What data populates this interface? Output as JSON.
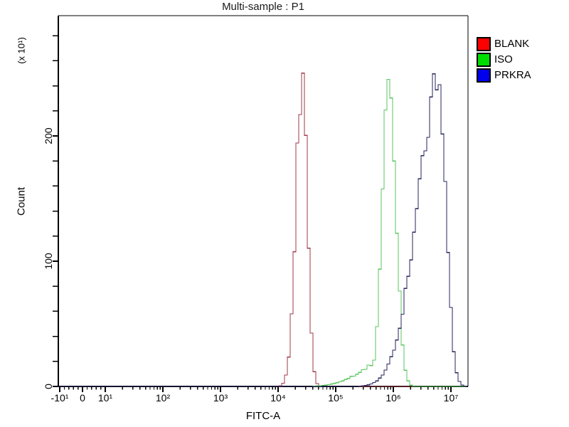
{
  "title": "Multi-sample : P1",
  "chart_data": {
    "type": "line",
    "subtype": "flow-cytometry-histogram",
    "title": "Multi-sample : P1",
    "xlabel": "FITC-A",
    "ylabel": "Count",
    "y_unit_label": "(x 10¹)",
    "x_scale": "biexponential (linear from -10 to 10, logarithmic 10¹ to 10⁷)",
    "xlim_labels": [
      "-10¹",
      "10⁷"
    ],
    "ylim": [
      0,
      290
    ],
    "y_minor_tick_step": 20,
    "grid": "off",
    "legend_position": "top-right-outside",
    "y_major_ticks": [
      {
        "value": 0,
        "label": "0"
      },
      {
        "value": 100,
        "label": "100"
      },
      {
        "value": 200,
        "label": "200"
      }
    ],
    "x_major_ticks": [
      {
        "value": -10,
        "label": "-10¹"
      },
      {
        "value": 0,
        "label": "0"
      },
      {
        "value": 10,
        "label": "10¹"
      },
      {
        "value": 100,
        "label": "10²"
      },
      {
        "value": 1000,
        "label": "10³"
      },
      {
        "value": 10000,
        "label": "10⁴"
      },
      {
        "value": 100000,
        "label": "10⁵"
      },
      {
        "value": 1000000,
        "label": "10⁶"
      },
      {
        "value": 10000000,
        "label": "10⁷"
      }
    ],
    "series": [
      {
        "name": "BLANK",
        "swatch_color": "#ff0000",
        "curve_color": "#9e3a48",
        "peak_center_value": 26000,
        "peak_center_log10": 4.42,
        "peak_height_counts": 247,
        "sigma_left_log": 0.11,
        "sigma_right_log": 0.085
      },
      {
        "name": "ISO",
        "swatch_color": "#00dd00",
        "curve_color": "#58c55c",
        "peak_center_value": 850000,
        "peak_center_log10": 5.93,
        "peak_height_counts": 247,
        "sigma_left_log": 0.12,
        "sigma_right_log": 0.115,
        "left_tail": {
          "height_counts": 22,
          "sigma_log": 0.45
        }
      },
      {
        "name": "PRKRA",
        "swatch_color": "#0000ee",
        "curve_color": "#26265e",
        "peak_center_value": 6200000,
        "peak_center_log10": 6.79,
        "peak_height_counts": 243,
        "sigma_left_log": 0.38,
        "sigma_right_log": 0.125,
        "left_tail": {
          "height_counts": 2.5,
          "sigma_log": 0.6
        }
      }
    ]
  }
}
